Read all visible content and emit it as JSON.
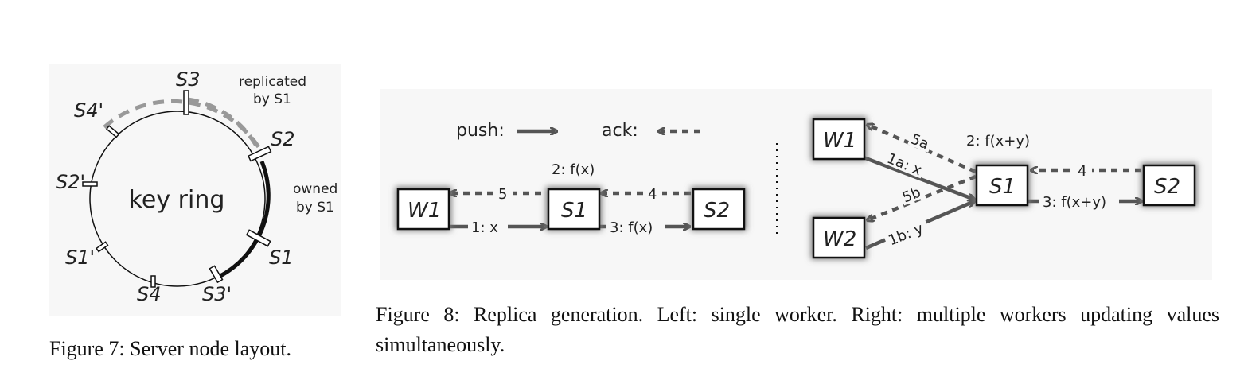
{
  "figure7": {
    "ring_label": "key ring",
    "nodes": {
      "s3": "S3",
      "s2": "S2",
      "s1": "S1",
      "s3p": "S3'",
      "s4": "S4",
      "s1p": "S1'",
      "s2p": "S2'",
      "s4p": "S4'"
    },
    "replicated_label": [
      "replicated",
      "by S1"
    ],
    "owned_label": [
      "owned",
      "by S1"
    ],
    "caption": "Figure 7: Server node layout."
  },
  "figure8": {
    "legend": {
      "push": "push:",
      "ack": "ack:"
    },
    "left": {
      "nodes": {
        "w1": "W1",
        "s1": "S1",
        "s2": "S2"
      },
      "edges": {
        "push_w1_s1": "1: x",
        "compute": "2: f(x)",
        "push_s1_s2": "3: f(x)",
        "ack_s2_s1": "4",
        "ack_s1_w1": "5"
      }
    },
    "right": {
      "nodes": {
        "w1": "W1",
        "w2": "W2",
        "s1": "S1",
        "s2": "S2"
      },
      "edges": {
        "push_w1_s1": "1a: x",
        "push_w2_s1": "1b: y",
        "compute": "2: f(x+y)",
        "push_s1_s2": "3: f(x+y)",
        "ack_s2_s1": "4",
        "ack_s1_w1": "5a",
        "ack_s1_w2": "5b"
      }
    },
    "caption": "Figure 8: Replica generation. Left: single worker. Right: multiple workers updating values simultaneously."
  }
}
